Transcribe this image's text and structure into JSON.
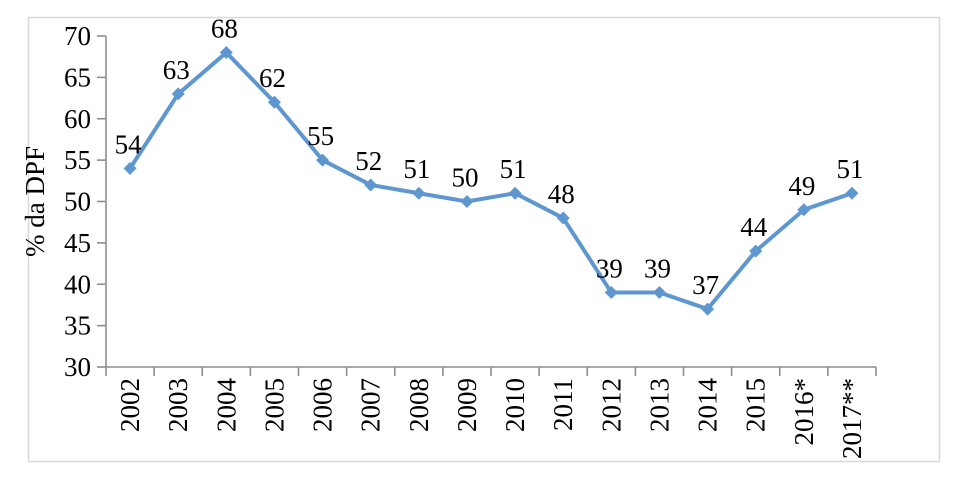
{
  "chart_data": {
    "type": "line",
    "title": "",
    "xlabel": "",
    "ylabel": "% da DPF",
    "categories": [
      "2002",
      "2003",
      "2004",
      "2005",
      "2006",
      "2007",
      "2008",
      "2009",
      "2010",
      "2011",
      "2012",
      "2013",
      "2014",
      "2015",
      "2016*",
      "2017**"
    ],
    "values": [
      54,
      63,
      68,
      62,
      55,
      52,
      51,
      50,
      51,
      48,
      39,
      39,
      37,
      44,
      49,
      51
    ],
    "data_labels": [
      "54",
      "63",
      "68",
      "62",
      "55",
      "52",
      "51",
      "50",
      "51",
      "48",
      "39",
      "39",
      "37",
      "44",
      "49",
      "51"
    ],
    "ylim": [
      30,
      70
    ],
    "yticks": [
      30,
      35,
      40,
      45,
      50,
      55,
      60,
      65,
      70
    ],
    "grid": "off",
    "legend": "none",
    "marker": "diamond",
    "colors": {
      "line": "#5E97D0",
      "marker": "#5E97D0",
      "axis": "#8E8E8E",
      "frame_border": "#D9D9D9",
      "text": "#000000",
      "background": "#FFFFFF"
    }
  }
}
